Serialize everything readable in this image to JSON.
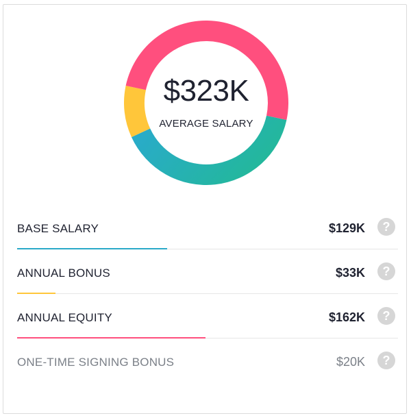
{
  "chart_data": {
    "type": "pie",
    "subtype": "donut",
    "center_value": "$323K",
    "center_label": "AVERAGE SALARY",
    "total": 323,
    "slices": [
      {
        "label": "BASE SALARY",
        "value": 129,
        "display": "$129K",
        "color": "#27b5a3"
      },
      {
        "label": "ANNUAL BONUS",
        "value": 33,
        "display": "$33K",
        "color": "#ffc63a"
      },
      {
        "label": "ANNUAL EQUITY",
        "value": 162,
        "display": "$162K",
        "color": "#ff4f7e"
      }
    ],
    "one_time": {
      "label": "ONE-TIME SIGNING BONUS",
      "value": 20,
      "display": "$20K"
    },
    "bar_colors": {
      "BASE SALARY": "#2aa9c8",
      "ANNUAL BONUS": "#ffc63a",
      "ANNUAL EQUITY": "#ff4f7e"
    }
  },
  "help_glyph": "?",
  "icons": {
    "help": "question-circle-icon"
  }
}
